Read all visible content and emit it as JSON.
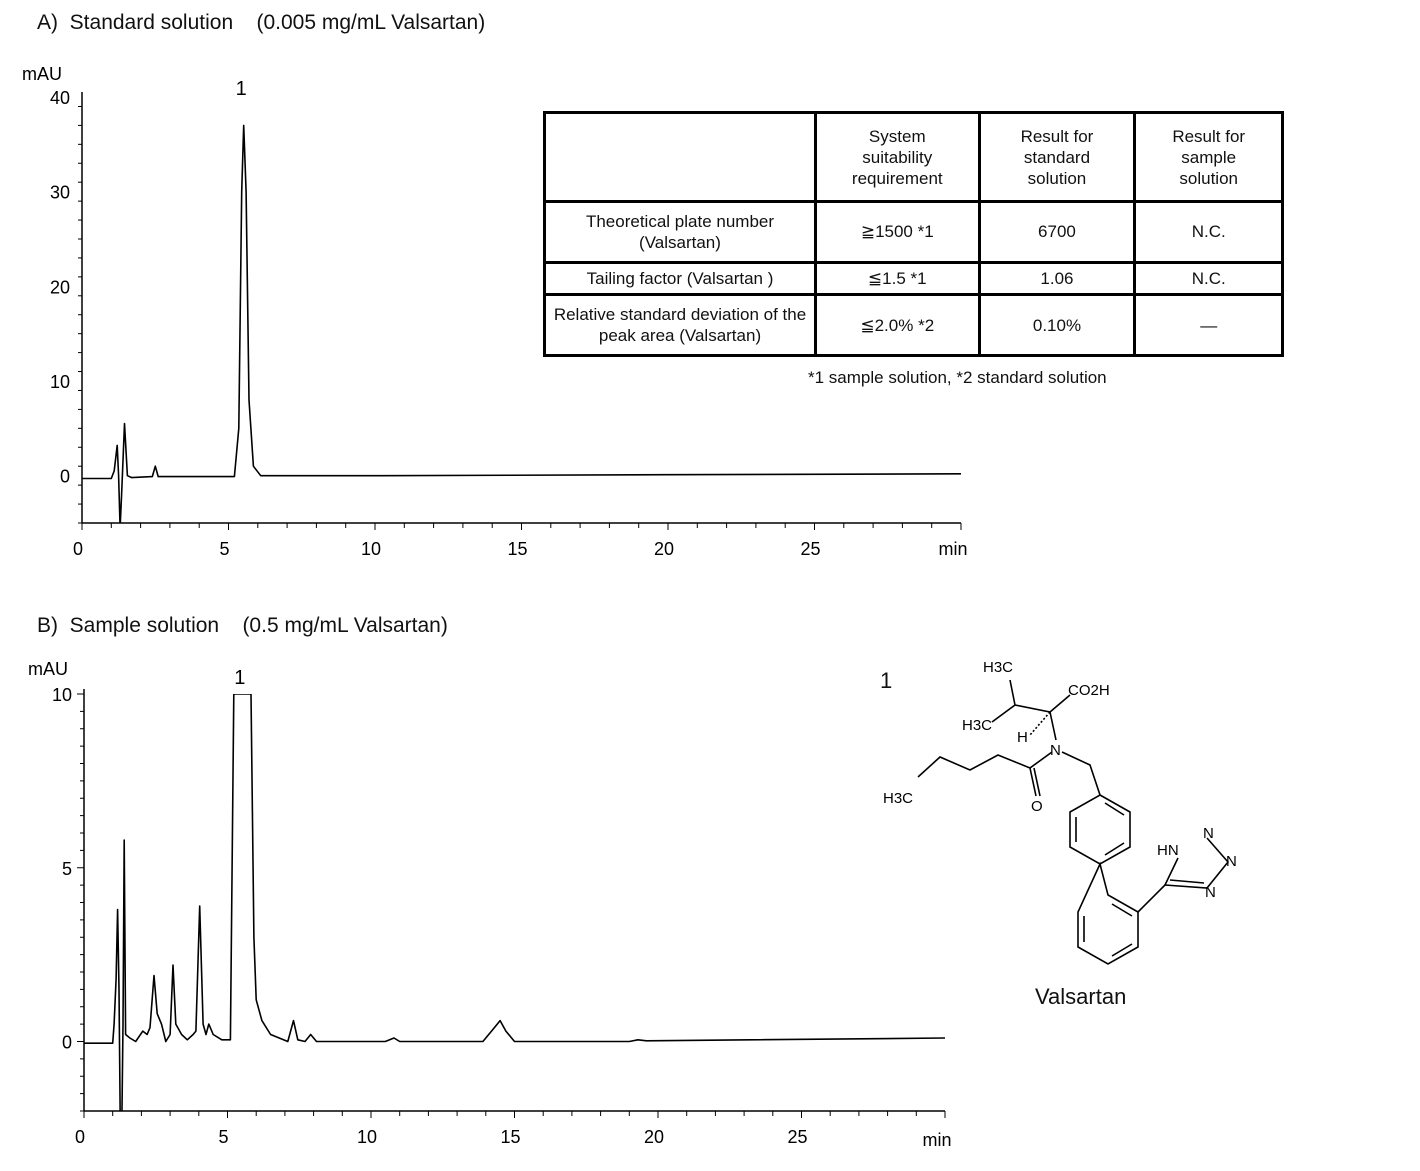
{
  "panels": [
    {
      "label": "A)",
      "title": "Standard solution",
      "subtitle": "(0.005 mg/mL Valsartan)"
    },
    {
      "label": "B)",
      "title": "Sample solution",
      "subtitle": "(0.5 mg/mL Valsartan)"
    }
  ],
  "chart_data": [
    {
      "type": "line",
      "title": "A)  Standard solution   (0.005 mg/mL Valsartan)",
      "xlabel": "min",
      "ylabel": "mAU",
      "xlim": [
        0,
        30
      ],
      "ylim": [
        -5,
        40
      ],
      "xticks": [
        0,
        5,
        10,
        15,
        20,
        25
      ],
      "yticks": [
        0,
        10,
        20,
        30,
        40
      ],
      "grid": false,
      "peak_labels": [
        {
          "x": 5.5,
          "text": "1"
        }
      ],
      "series": [
        {
          "color": "#000000",
          "points": [
            [
              0,
              -0.3
            ],
            [
              1.0,
              -0.3
            ],
            [
              1.1,
              0.5
            ],
            [
              1.2,
              3.2
            ],
            [
              1.25,
              0
            ],
            [
              1.3,
              -5.5
            ],
            [
              1.35,
              -2
            ],
            [
              1.45,
              5.5
            ],
            [
              1.55,
              0
            ],
            [
              1.7,
              -0.2
            ],
            [
              2.4,
              -0.1
            ],
            [
              2.5,
              1.0
            ],
            [
              2.6,
              -0.1
            ],
            [
              5.2,
              -0.1
            ],
            [
              5.35,
              5
            ],
            [
              5.45,
              30
            ],
            [
              5.52,
              37
            ],
            [
              5.6,
              30
            ],
            [
              5.7,
              8
            ],
            [
              5.85,
              1
            ],
            [
              6.1,
              0
            ],
            [
              10,
              0
            ],
            [
              20,
              0.1
            ],
            [
              30,
              0.2
            ]
          ]
        }
      ]
    },
    {
      "type": "line",
      "title": "B)  Sample solution   (0.5 mg/mL Valsartan)",
      "xlabel": "min",
      "ylabel": "mAU",
      "xlim": [
        0,
        30
      ],
      "ylim": [
        -2,
        10
      ],
      "xticks": [
        0,
        5,
        10,
        15,
        20,
        25
      ],
      "yticks": [
        0,
        5,
        10
      ],
      "grid": false,
      "peak_labels": [
        {
          "x": 5.5,
          "text": "1"
        }
      ],
      "series": [
        {
          "color": "#000000",
          "points": [
            [
              0,
              -0.05
            ],
            [
              1.0,
              -0.05
            ],
            [
              1.05,
              0.5
            ],
            [
              1.12,
              1.8
            ],
            [
              1.17,
              3.8
            ],
            [
              1.22,
              1.5
            ],
            [
              1.26,
              -2.2
            ],
            [
              1.32,
              -2.2
            ],
            [
              1.36,
              0.5
            ],
            [
              1.4,
              5.8
            ],
            [
              1.45,
              0.2
            ],
            [
              1.6,
              0.1
            ],
            [
              1.8,
              0
            ],
            [
              2.05,
              0.3
            ],
            [
              2.2,
              0.2
            ],
            [
              2.3,
              0.4
            ],
            [
              2.44,
              1.9
            ],
            [
              2.55,
              0.8
            ],
            [
              2.7,
              0.5
            ],
            [
              2.85,
              0
            ],
            [
              3.0,
              0.2
            ],
            [
              3.1,
              2.2
            ],
            [
              3.2,
              0.5
            ],
            [
              3.4,
              0.2
            ],
            [
              3.6,
              0.05
            ],
            [
              3.8,
              0.2
            ],
            [
              3.9,
              0.3
            ],
            [
              4.03,
              3.9
            ],
            [
              4.15,
              0.5
            ],
            [
              4.25,
              0.2
            ],
            [
              4.35,
              0.5
            ],
            [
              4.5,
              0.2
            ],
            [
              4.8,
              0.05
            ],
            [
              5.1,
              0.05
            ],
            [
              5.22,
              10
            ],
            [
              5.82,
              10
            ],
            [
              5.92,
              3
            ],
            [
              6.0,
              1.2
            ],
            [
              6.2,
              0.6
            ],
            [
              6.5,
              0.2
            ],
            [
              6.8,
              0.1
            ],
            [
              7.1,
              0
            ],
            [
              7.3,
              0.6
            ],
            [
              7.45,
              0.05
            ],
            [
              7.7,
              0
            ],
            [
              7.9,
              0.2
            ],
            [
              8.1,
              0
            ],
            [
              10.5,
              0
            ],
            [
              10.8,
              0.1
            ],
            [
              11,
              0
            ],
            [
              13.9,
              0
            ],
            [
              14.3,
              0.4
            ],
            [
              14.5,
              0.6
            ],
            [
              14.7,
              0.3
            ],
            [
              15,
              0
            ],
            [
              19,
              0
            ],
            [
              19.3,
              0.05
            ],
            [
              19.6,
              0.02
            ],
            [
              30,
              0.1
            ]
          ]
        }
      ]
    }
  ],
  "table": {
    "headers": [
      "",
      "System suitability requirement",
      "Result for standard solution",
      "Result for sample solution"
    ],
    "rows": [
      [
        "Theoretical plate number (Valsartan)",
        "≧1500 *1",
        "6700",
        "N.C."
      ],
      [
        "Tailing factor (Valsartan )",
        "≦1.5 *1",
        "1.06",
        "N.C."
      ],
      [
        "Relative standard deviation of the peak area (Valsartan)",
        "≦2.0% *2",
        "0.10%",
        "—"
      ]
    ],
    "footnote": "*1 sample solution, *2 standard solution"
  },
  "structure": {
    "number": "1",
    "name": "Valsartan",
    "atoms": [
      "H3C",
      "CO2H",
      "H3C",
      "H",
      "N",
      "H3C",
      "O",
      "HN",
      "N",
      "N",
      "N"
    ]
  }
}
